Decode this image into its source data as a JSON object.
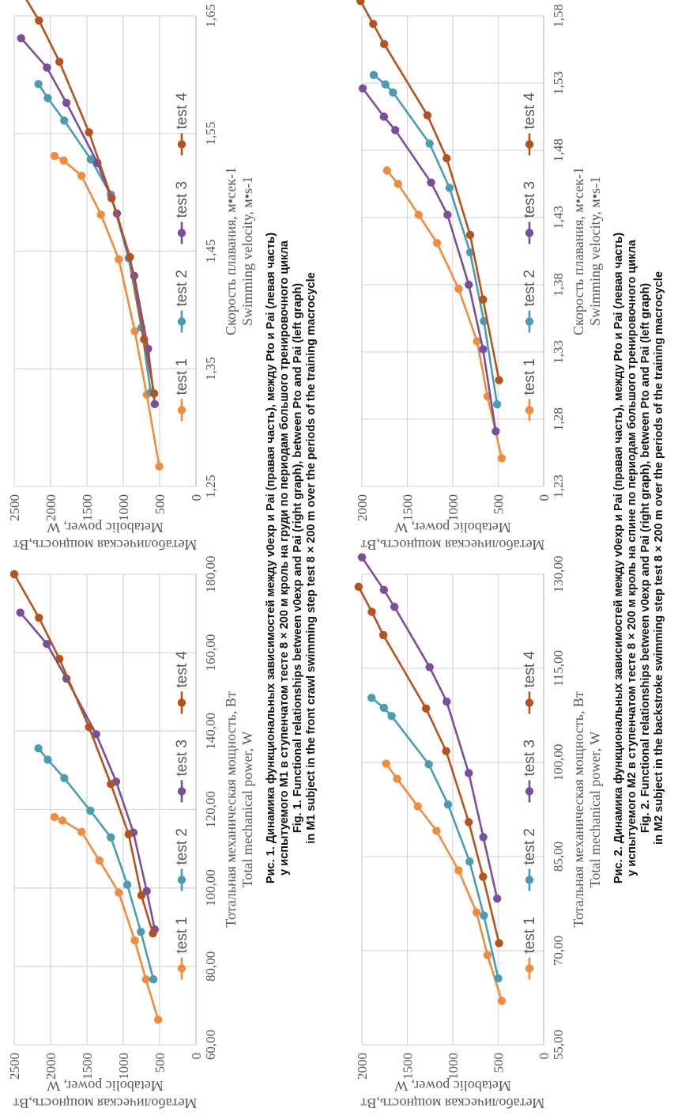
{
  "colors": {
    "test 1": "#f08c3c",
    "test 2": "#4a9cb4",
    "test 3": "#7a4f9a",
    "test 4": "#b4541c",
    "grid": "#d9d9d9",
    "text": "#595959"
  },
  "fig1": {
    "caption": [
      "Рис. 1. Динамика функциональных зависимостей между v0exp и Pai (правая часть), между Pto и Pai (левая часть)",
      "у испытуемого М1 в ступенчатом тесте 8 × 200 м кроль на груди по периодам большого тренировочного цикла",
      "Fig. 1. Functional relationships between v0exp and Pai (right graph), between Pto and Pai (left graph)",
      "in M1 subject in the front crawl swimming step test 8 × 200 m over the periods of the training macrocycle"
    ]
  },
  "fig2": {
    "caption": [
      "Рис. 2. Динамика функциональных зависимостей между v0exp и Pai (правая часть), между Pto и Pai (левая часть)",
      "у испытуемого М2 в ступенчатом тесте 8 × 200 м кроль на спине по периодам большого тренировочного цикла",
      "Fig. 2. Functional relationships between v0exp and Pai (right graph), between Pto and Pai (left graph)",
      "in M2 subject in the backstroke swimming step test 8 × 200 m over the periods of the training macrocycle"
    ]
  },
  "chart_data": [
    {
      "id": "fig1-left",
      "type": "line",
      "title": "",
      "xlabel": [
        "Тотальная механическая мощность, Вт",
        "Total mechanical power, W"
      ],
      "ylabel": [
        "Метаболическая мощность,Вт",
        "Metabolic power, W"
      ],
      "xlim": [
        60,
        180
      ],
      "xticks": [
        60,
        80,
        100,
        120,
        140,
        160,
        180
      ],
      "xtick_labels": [
        "60,00",
        "80,00",
        "100,00",
        "120,00",
        "140,00",
        "160,00",
        "180,00"
      ],
      "ylim": [
        0,
        2500
      ],
      "yticks": [
        0,
        500,
        1000,
        1500,
        2000,
        2500
      ],
      "ytick_labels": [
        "0",
        "500",
        "1000",
        "1500",
        "2000",
        "2500"
      ],
      "grid": true,
      "legend": "bottom",
      "series": [
        {
          "name": "test 1",
          "x": [
            66.4,
            76.7,
            86.6,
            98.8,
            107.0,
            114.3,
            117.2,
            118.1
          ],
          "y": [
            520,
            688,
            842,
            1061,
            1329,
            1574,
            1837,
            1947
          ]
        },
        {
          "name": "test 2",
          "x": [
            76.7,
            88.8,
            100.8,
            112.9,
            119.7,
            128.0,
            132.7,
            135.6
          ],
          "y": [
            586,
            758,
            944,
            1171,
            1453,
            1812,
            2038,
            2167
          ]
        },
        {
          "name": "test 3",
          "x": [
            89.4,
            99.2,
            114.1,
            127.1,
            139.2,
            153.4,
            162.2,
            170.2
          ],
          "y": [
            567,
            677,
            860,
            1098,
            1373,
            1782,
            2050,
            2416
          ]
        },
        {
          "name": "test 4",
          "x": [
            88.4,
            98.1,
            113.7,
            126.5,
            141.0,
            158.4,
            168.9,
            180.0
          ],
          "y": [
            593,
            750,
            926,
            1171,
            1471,
            1878,
            2160,
            2500
          ]
        }
      ]
    },
    {
      "id": "fig1-right",
      "type": "line",
      "title": "",
      "xlabel": [
        "Скорость плавания, м•сек-1",
        "Swimming velocity, м•s-1"
      ],
      "ylabel": [
        "Метаболическая мощность,Вт",
        "Metabolic power, W"
      ],
      "xlim": [
        1.25,
        1.65
      ],
      "xticks": [
        1.25,
        1.35,
        1.45,
        1.55,
        1.65
      ],
      "xtick_labels": [
        "1,25",
        "1,35",
        "1,45",
        "1,55",
        "1,65"
      ],
      "ylim": [
        0,
        2500
      ],
      "yticks": [
        0,
        500,
        1000,
        1500,
        2000,
        2500
      ],
      "ytick_labels": [
        "0",
        "500",
        "1000",
        "1500",
        "2000",
        "2500"
      ],
      "grid": true,
      "legend": "bottom",
      "series": [
        {
          "name": "test 1",
          "x": [
            1.267,
            1.328,
            1.382,
            1.443,
            1.481,
            1.514,
            1.527,
            1.531
          ],
          "y": [
            505,
            677,
            842,
            1061,
            1307,
            1574,
            1820,
            1947
          ]
        },
        {
          "name": "test 2",
          "x": [
            1.33,
            1.385,
            1.444,
            1.498,
            1.528,
            1.561,
            1.58,
            1.592
          ],
          "y": [
            622,
            750,
            926,
            1171,
            1446,
            1812,
            2038,
            2167
          ]
        },
        {
          "name": "test 3",
          "x": [
            1.32,
            1.367,
            1.429,
            1.482,
            1.525,
            1.576,
            1.606,
            1.631
          ],
          "y": [
            567,
            659,
            849,
            1087,
            1355,
            1782,
            2050,
            2405
          ]
        },
        {
          "name": "test 4",
          "x": [
            1.329,
            1.375,
            1.445,
            1.495,
            1.551,
            1.611,
            1.646,
            1.681
          ],
          "y": [
            575,
            714,
            908,
            1160,
            1471,
            1878,
            2160,
            2500
          ]
        }
      ]
    },
    {
      "id": "fig2-left",
      "type": "line",
      "title": "",
      "xlabel": [
        "Тотальная механическая мощность, Вт",
        "Total mechanical power, W"
      ],
      "ylabel": [
        "Метаболическая мощность,Вт",
        "Metabolic power, W"
      ],
      "xlim": [
        55,
        130
      ],
      "xticks": [
        55,
        70,
        85,
        100,
        115,
        130
      ],
      "xtick_labels": [
        "55,00",
        "70,00",
        "85,00",
        "100,00",
        "115,00",
        "130,00"
      ],
      "ylim": [
        0,
        2000
      ],
      "yticks": [
        0,
        500,
        1000,
        1500,
        2000
      ],
      "ytick_labels": [
        "0",
        "500",
        "1000",
        "1500",
        "2000"
      ],
      "grid": true,
      "legend": "bottom",
      "series": [
        {
          "name": "test 1",
          "x": [
            62.0,
            69.3,
            76.1,
            82.8,
            89.1,
            93.0,
            97.4,
            99.8
          ],
          "y": [
            461,
            618,
            739,
            936,
            1179,
            1385,
            1612,
            1733
          ]
        },
        {
          "name": "test 2",
          "x": [
            65.6,
            75.6,
            84.2,
            93.3,
            99.7,
            107.4,
            108.7,
            110.3
          ],
          "y": [
            500,
            658,
            815,
            1052,
            1264,
            1673,
            1758,
            1894
          ]
        },
        {
          "name": "test 3",
          "x": [
            78.3,
            88.1,
            98.3,
            109.7,
            115.2,
            124.8,
            127.5,
            132.7
          ],
          "y": [
            512,
            664,
            824,
            1067,
            1255,
            1642,
            1758,
            2000
          ]
        },
        {
          "name": "test 4",
          "x": [
            71.2,
            81.8,
            90.5,
            101.8,
            108.6,
            120.3,
            124.0,
            128.0
          ],
          "y": [
            491,
            667,
            824,
            1073,
            1294,
            1764,
            1891,
            2036
          ]
        }
      ]
    },
    {
      "id": "fig2-right",
      "type": "line",
      "title": "",
      "xlabel": [
        "Скорость плавания, м•сек-1",
        "Swimming velocity, м•s-1"
      ],
      "ylabel": [
        "Метаболическая мощность,Вт",
        "Metabolic power, W"
      ],
      "xlim": [
        1.23,
        1.58
      ],
      "xticks": [
        1.23,
        1.28,
        1.33,
        1.38,
        1.43,
        1.48,
        1.53,
        1.58
      ],
      "xtick_labels": [
        "1,23",
        "1,28",
        "1,33",
        "1,38",
        "1,43",
        "1,48",
        "1,53",
        "1,58"
      ],
      "ylim": [
        0,
        2000
      ],
      "yticks": [
        0,
        500,
        1000,
        1500,
        2000
      ],
      "ytick_labels": [
        "0",
        "500",
        "1000",
        "1500",
        "2000"
      ],
      "grid": true,
      "legend": "bottom",
      "series": [
        {
          "name": "test 1",
          "x": [
            1.251,
            1.297,
            1.338,
            1.377,
            1.411,
            1.432,
            1.455,
            1.465
          ],
          "y": [
            461,
            618,
            733,
            936,
            1173,
            1376,
            1603,
            1724
          ]
        },
        {
          "name": "test 2",
          "x": [
            1.291,
            1.353,
            1.404,
            1.452,
            1.485,
            1.523,
            1.529,
            1.536
          ],
          "y": [
            512,
            658,
            809,
            1036,
            1255,
            1658,
            1742,
            1870
          ]
        },
        {
          "name": "test 3",
          "x": [
            1.271,
            1.332,
            1.38,
            1.432,
            1.456,
            1.495,
            1.505,
            1.526
          ],
          "y": [
            527,
            667,
            824,
            1058,
            1239,
            1633,
            1758,
            1991
          ]
        },
        {
          "name": "test 4",
          "x": [
            1.309,
            1.369,
            1.417,
            1.474,
            1.506,
            1.559,
            1.574,
            1.591
          ],
          "y": [
            491,
            667,
            809,
            1067,
            1279,
            1755,
            1876,
            2015
          ]
        }
      ]
    }
  ]
}
